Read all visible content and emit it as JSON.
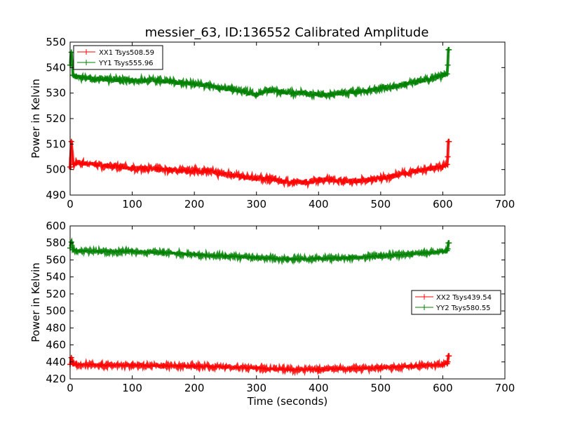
{
  "chart_data": [
    {
      "type": "line",
      "title": "messier_63, ID:136552 Calibrated Amplitude",
      "xlabel": "",
      "ylabel": "Power in Kelvin",
      "xlim": [
        0,
        700
      ],
      "ylim": [
        490,
        550
      ],
      "x_ticks": [
        "0",
        "100",
        "200",
        "300",
        "400",
        "500",
        "600",
        "700"
      ],
      "y_ticks": [
        "490",
        "500",
        "510",
        "520",
        "530",
        "540",
        "550"
      ],
      "legend_position": "top-left",
      "series": [
        {
          "name": "XX1 Tsys508.59",
          "color": "#ff0000",
          "x": [
            0,
            2,
            5,
            10,
            20,
            40,
            60,
            80,
            100,
            120,
            140,
            160,
            180,
            200,
            220,
            240,
            260,
            280,
            300,
            320,
            340,
            360,
            380,
            400,
            420,
            440,
            460,
            480,
            500,
            520,
            540,
            560,
            580,
            600,
            607,
            608,
            609,
            610
          ],
          "values": [
            501,
            511,
            502,
            502.5,
            502.5,
            502,
            501.5,
            501,
            500.5,
            500.5,
            500,
            500,
            499.5,
            499.5,
            499.5,
            498.5,
            498,
            497,
            496.5,
            496.5,
            495.5,
            495,
            495,
            496,
            496,
            495.5,
            495.5,
            496,
            496.5,
            497.5,
            498.5,
            499.5,
            500.5,
            501,
            502,
            505,
            511,
            511
          ]
        },
        {
          "name": "YY1 Tsys555.96",
          "color": "#008000",
          "x": [
            0,
            2,
            5,
            10,
            20,
            40,
            60,
            80,
            100,
            120,
            140,
            160,
            180,
            200,
            220,
            240,
            260,
            280,
            300,
            320,
            340,
            360,
            380,
            400,
            420,
            440,
            460,
            480,
            500,
            520,
            540,
            560,
            580,
            600,
            607,
            608,
            609,
            610
          ],
          "values": [
            541,
            546,
            537,
            536.5,
            536,
            535.5,
            535.5,
            535,
            535,
            535,
            535,
            534.5,
            534,
            533.5,
            533,
            532,
            531.5,
            530.5,
            529.5,
            531,
            530.5,
            530,
            530,
            529.5,
            529.5,
            530,
            530.5,
            531,
            532,
            532.5,
            533.5,
            534.5,
            535.5,
            537,
            537.5,
            541,
            547,
            547
          ]
        }
      ]
    },
    {
      "type": "line",
      "title": "",
      "xlabel": "Time (seconds)",
      "ylabel": "Power in Kelvin",
      "xlim": [
        0,
        700
      ],
      "ylim": [
        420,
        600
      ],
      "x_ticks": [
        "0",
        "100",
        "200",
        "300",
        "400",
        "500",
        "600",
        "700"
      ],
      "y_ticks": [
        "420",
        "440",
        "460",
        "480",
        "500",
        "520",
        "540",
        "560",
        "580",
        "600"
      ],
      "legend_position": "center-right",
      "series": [
        {
          "name": "XX2 Tsys439.54",
          "color": "#ff0000",
          "x": [
            0,
            2,
            5,
            10,
            50,
            100,
            150,
            200,
            250,
            300,
            350,
            400,
            450,
            500,
            550,
            600,
            607,
            608,
            609,
            610
          ],
          "values": [
            437,
            445,
            438,
            437,
            436.5,
            436,
            435.5,
            435,
            434,
            433,
            431,
            431.5,
            432,
            433,
            435,
            437,
            438,
            440,
            447,
            447
          ]
        },
        {
          "name": "YY2 Tsys580.55",
          "color": "#008000",
          "x": [
            0,
            2,
            5,
            10,
            50,
            100,
            150,
            200,
            250,
            300,
            350,
            400,
            450,
            500,
            550,
            600,
            607,
            608,
            609,
            610
          ],
          "values": [
            574,
            581,
            572,
            571,
            570,
            570,
            568.5,
            566.5,
            564.5,
            562.5,
            561,
            561.5,
            562.5,
            564.5,
            567,
            570,
            571,
            573,
            580,
            580
          ]
        }
      ]
    }
  ]
}
